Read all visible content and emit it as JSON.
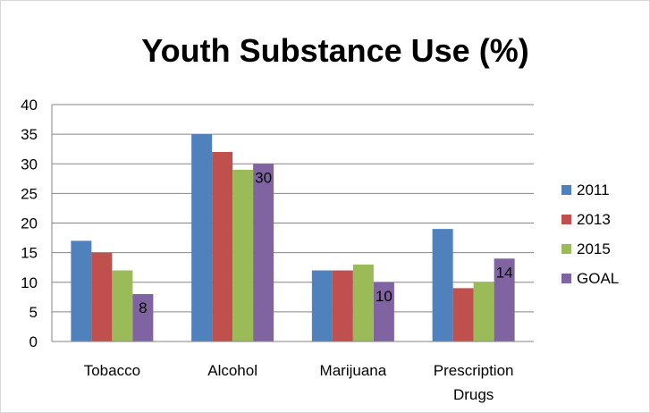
{
  "chart_data": {
    "type": "bar",
    "title": "Youth Substance Use (%)",
    "categories": [
      "Tobacco",
      "Alcohol",
      "Marijuana",
      "Prescription Drugs"
    ],
    "category_lines": [
      [
        "Tobacco"
      ],
      [
        "Alcohol"
      ],
      [
        "Marijuana"
      ],
      [
        "Prescription",
        "Drugs"
      ]
    ],
    "series": [
      {
        "name": "2011",
        "color": "#4F81BD",
        "values": [
          17,
          35,
          12,
          19
        ]
      },
      {
        "name": "2013",
        "color": "#C0504D",
        "values": [
          15,
          32,
          12,
          9
        ]
      },
      {
        "name": "2015",
        "color": "#9BBB59",
        "values": [
          12,
          29,
          13,
          10
        ]
      },
      {
        "name": "GOAL",
        "color": "#8064A2",
        "values": [
          8,
          30,
          10,
          14
        ]
      }
    ],
    "data_labels": {
      "series": "GOAL",
      "values": [
        "8",
        "30",
        "10",
        "14"
      ]
    },
    "ylim": [
      0,
      40
    ],
    "yticks": [
      "0",
      "5",
      "10",
      "15",
      "20",
      "25",
      "30",
      "35",
      "40"
    ],
    "grid": true,
    "legend": "right"
  }
}
